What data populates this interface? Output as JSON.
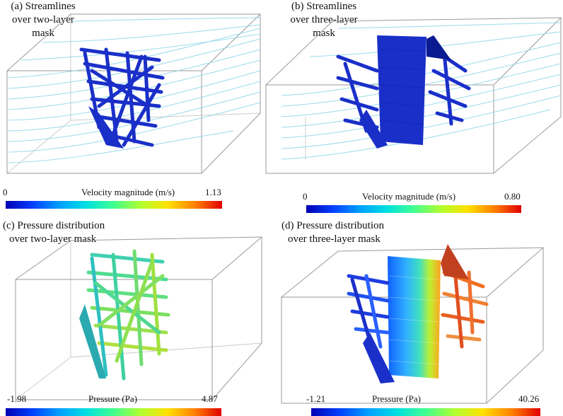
{
  "panels": [
    {
      "id": "a",
      "caption_lines": [
        "(a) Streamlines",
        "over two-layer",
        "mask"
      ],
      "colorbar": {
        "min": "0",
        "max": "1.13",
        "title": "Velocity magnitude (m/s)"
      }
    },
    {
      "id": "b",
      "caption_lines": [
        "(b) Streamlines",
        "over three-layer",
        "mask"
      ],
      "colorbar": {
        "min": "0",
        "max": "0.80",
        "title": "Velocity magnitude (m/s)"
      }
    },
    {
      "id": "c",
      "caption_lines": [
        "(c) Pressure distribution",
        "over two-layer mask"
      ],
      "colorbar": {
        "min": "-1.98",
        "max": "4.87",
        "title": "Pressure (Pa)"
      }
    },
    {
      "id": "d",
      "caption_lines": [
        "(d) Pressure distribution",
        "over three-layer mask"
      ],
      "colorbar": {
        "min": "-1.21",
        "max": "40.26",
        "title": "Pressure (Pa)"
      }
    }
  ],
  "colors": {
    "jet": [
      "#0000b4",
      "#0040ff",
      "#00a0ff",
      "#00e0e0",
      "#40ff90",
      "#b0ff30",
      "#ffe000",
      "#ff8000",
      "#e00000"
    ],
    "box_edge": "#9a9a9a",
    "streamline": "#8fd7ec",
    "fiber_dark": "#1a2fc8"
  }
}
